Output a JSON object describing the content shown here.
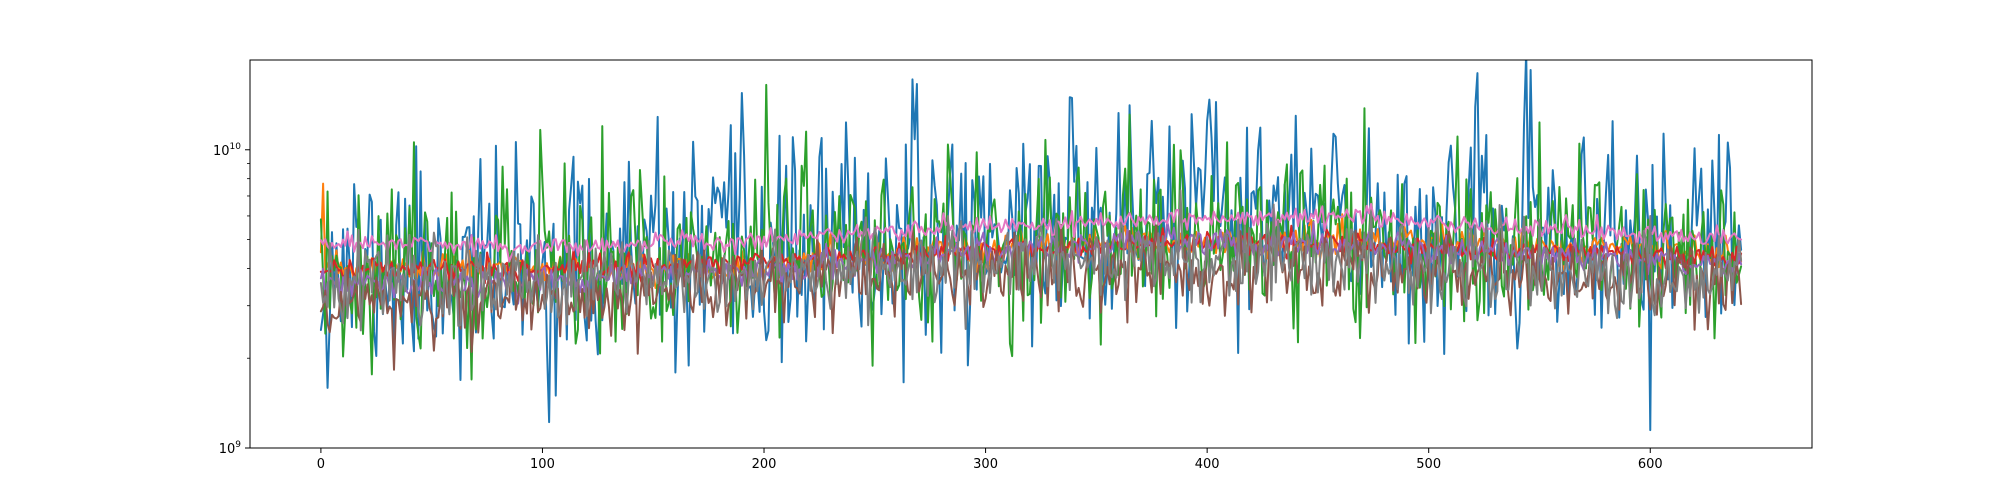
{
  "chart_data": {
    "type": "line",
    "title": "",
    "xlabel": "",
    "ylabel": "",
    "yscale": "log",
    "xlim": [
      -32,
      673
    ],
    "ylim": [
      1000000000,
      20000000000
    ],
    "x_ticks": [
      0,
      100,
      200,
      300,
      400,
      500,
      600
    ],
    "y_ticks": [
      {
        "value": 1000000000,
        "base": "10",
        "exp": "9"
      },
      {
        "value": 10000000000,
        "base": "10",
        "exp": "10"
      }
    ],
    "grid": false,
    "legend": "none",
    "x_range": [
      0,
      641
    ],
    "series": [
      {
        "color": "#1f77b4",
        "level": [
          [
            0,
            4000000000.0
          ],
          [
            100,
            4000000000.0
          ],
          [
            200,
            4400000000.0
          ],
          [
            250,
            4900000000.0
          ],
          [
            300,
            5600000000.0
          ],
          [
            400,
            6000000000.0
          ],
          [
            450,
            5600000000.0
          ],
          [
            550,
            5000000000.0
          ],
          [
            641,
            4800000000.0
          ]
        ],
        "noise": 0.33,
        "seed": 11,
        "peaks": [
          [
            190,
            15500000000.0
          ],
          [
            338,
            15000000000.0
          ],
          [
            440,
            13000000000.0
          ],
          [
            375,
            12500000000.0
          ],
          [
            400,
            12500000000.0
          ],
          [
            570,
            11000000000.0
          ]
        ]
      },
      {
        "color": "#ff7f0e",
        "level": [
          [
            0,
            4000000000.0
          ],
          [
            100,
            4000000000.0
          ],
          [
            200,
            4100000000.0
          ],
          [
            300,
            4600000000.0
          ],
          [
            400,
            4900000000.0
          ],
          [
            500,
            4900000000.0
          ],
          [
            641,
            4500000000.0
          ]
        ],
        "noise": 0.05,
        "seed": 23,
        "peaks": [
          [
            1,
            7700000000.0
          ]
        ]
      },
      {
        "color": "#2ca02c",
        "level": [
          [
            0,
            4000000000.0
          ],
          [
            100,
            4200000000.0
          ],
          [
            200,
            4500000000.0
          ],
          [
            300,
            4900000000.0
          ],
          [
            400,
            5100000000.0
          ],
          [
            500,
            5000000000.0
          ],
          [
            641,
            4600000000.0
          ]
        ],
        "noise": 0.26,
        "seed": 37,
        "peaks": [
          [
            201,
            16500000000.0
          ],
          [
            127,
            12000000000.0
          ],
          [
            110,
            9000000000.0
          ],
          [
            210,
            8000000000.0
          ]
        ]
      },
      {
        "color": "#d62728",
        "level": [
          [
            0,
            4000000000.0
          ],
          [
            100,
            4000000000.0
          ],
          [
            200,
            4200000000.0
          ],
          [
            300,
            4600000000.0
          ],
          [
            400,
            5000000000.0
          ],
          [
            500,
            4700000000.0
          ],
          [
            641,
            4300000000.0
          ]
        ],
        "noise": 0.035,
        "seed": 41,
        "peaks": []
      },
      {
        "color": "#9467bd",
        "level": [
          [
            0,
            3500000000.0
          ],
          [
            100,
            3600000000.0
          ],
          [
            200,
            4000000000.0
          ],
          [
            300,
            4600000000.0
          ],
          [
            400,
            4900000000.0
          ],
          [
            500,
            4600000000.0
          ],
          [
            641,
            4200000000.0
          ]
        ],
        "noise": 0.045,
        "seed": 53,
        "peaks": []
      },
      {
        "color": "#8c564b",
        "level": [
          [
            0,
            3000000000.0
          ],
          [
            100,
            3200000000.0
          ],
          [
            200,
            3500000000.0
          ],
          [
            300,
            3800000000.0
          ],
          [
            400,
            4000000000.0
          ],
          [
            500,
            3800000000.0
          ],
          [
            641,
            3600000000.0
          ]
        ],
        "noise": 0.12,
        "seed": 61,
        "peaks": []
      },
      {
        "color": "#e377c2",
        "level": [
          [
            0,
            4900000000.0
          ],
          [
            100,
            4700000000.0
          ],
          [
            200,
            5000000000.0
          ],
          [
            300,
            5600000000.0
          ],
          [
            400,
            5900000000.0
          ],
          [
            450,
            6000000000.0
          ],
          [
            500,
            5700000000.0
          ],
          [
            641,
            5000000000.0
          ]
        ],
        "noise": 0.03,
        "seed": 71,
        "peaks": []
      },
      {
        "color": "#7f7f7f",
        "level": [
          [
            0,
            3600000000.0
          ],
          [
            100,
            3600000000.0
          ],
          [
            200,
            3800000000.0
          ],
          [
            300,
            4200000000.0
          ],
          [
            400,
            4400000000.0
          ],
          [
            500,
            4200000000.0
          ],
          [
            641,
            3800000000.0
          ]
        ],
        "noise": 0.14,
        "seed": 83,
        "peaks": []
      }
    ]
  }
}
